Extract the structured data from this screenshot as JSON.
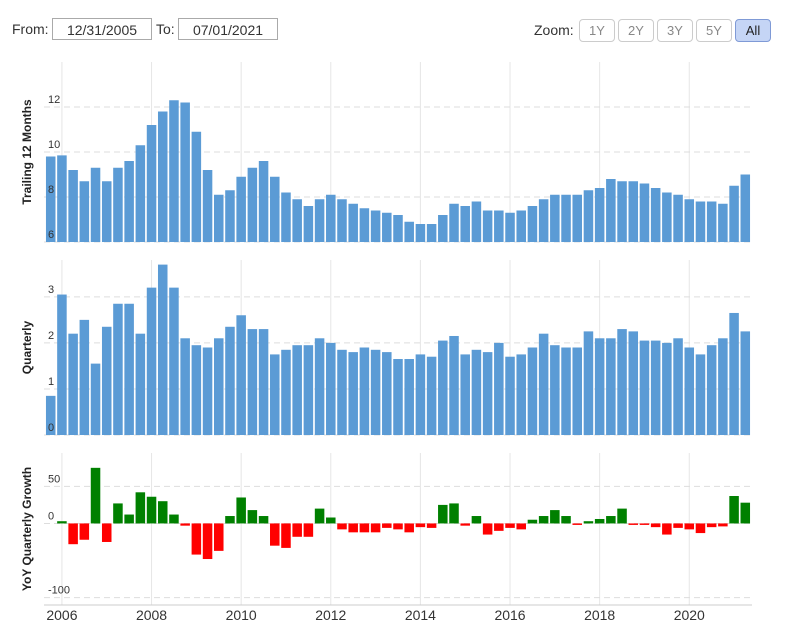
{
  "controls": {
    "from_label": "From:",
    "from_value": "12/31/2005",
    "to_label": "To:",
    "to_value": "07/01/2021",
    "zoom_label": "Zoom:",
    "zoom_buttons": [
      "1Y",
      "2Y",
      "3Y",
      "5Y",
      "All"
    ],
    "active": "All"
  },
  "x_axis": {
    "xlim": [
      2005.6,
      2021.4
    ],
    "xticks": [
      2006,
      2008,
      2010,
      2012,
      2014,
      2016,
      2018,
      2020
    ],
    "x": [
      2005.75,
      2006,
      2006.25,
      2006.5,
      2006.75,
      2007,
      2007.25,
      2007.5,
      2007.75,
      2008,
      2008.25,
      2008.5,
      2008.75,
      2009,
      2009.25,
      2009.5,
      2009.75,
      2010,
      2010.25,
      2010.5,
      2010.75,
      2011,
      2011.25,
      2011.5,
      2011.75,
      2012,
      2012.25,
      2012.5,
      2012.75,
      2013,
      2013.25,
      2013.5,
      2013.75,
      2014,
      2014.25,
      2014.5,
      2014.75,
      2015,
      2015.25,
      2015.5,
      2015.75,
      2016,
      2016.25,
      2016.5,
      2016.75,
      2017,
      2017.25,
      2017.5,
      2017.75,
      2018,
      2018.25,
      2018.5,
      2018.75,
      2019,
      2019.25,
      2019.5,
      2019.75,
      2020,
      2020.25,
      2020.5,
      2020.75,
      2021,
      2021.25
    ]
  },
  "chart_data": [
    {
      "type": "bar",
      "ylabel": "Trailing 12 Months",
      "color": "#5b9bd5",
      "ylim": [
        6,
        14
      ],
      "yticks": [
        6,
        8,
        10,
        12
      ],
      "grid": true,
      "values": [
        9.8,
        9.85,
        9.2,
        8.7,
        9.3,
        8.7,
        9.3,
        9.6,
        10.3,
        11.2,
        11.8,
        12.3,
        12.2,
        10.9,
        9.2,
        8.1,
        8.3,
        8.9,
        9.3,
        9.6,
        8.9,
        8.2,
        7.9,
        7.6,
        7.9,
        8.1,
        7.9,
        7.7,
        7.5,
        7.4,
        7.3,
        7.2,
        6.9,
        6.8,
        6.8,
        7.2,
        7.7,
        7.6,
        7.8,
        7.4,
        7.4,
        7.3,
        7.4,
        7.6,
        7.9,
        8.1,
        8.1,
        8.1,
        8.3,
        8.4,
        8.8,
        8.7,
        8.7,
        8.6,
        8.4,
        8.2,
        8.1,
        7.9,
        7.8,
        7.8,
        7.7,
        8.5,
        9.0
      ]
    },
    {
      "type": "bar",
      "ylabel": "Quarterly",
      "color": "#5b9bd5",
      "ylim": [
        0,
        3.8
      ],
      "yticks": [
        0,
        1,
        2,
        3
      ],
      "grid": true,
      "values": [
        0.85,
        3.05,
        2.2,
        2.5,
        1.55,
        2.35,
        2.85,
        2.85,
        2.2,
        3.2,
        3.7,
        3.2,
        2.1,
        1.95,
        1.9,
        2.1,
        2.35,
        2.6,
        2.3,
        2.3,
        1.75,
        1.85,
        1.95,
        1.95,
        2.1,
        2.0,
        1.85,
        1.8,
        1.9,
        1.85,
        1.8,
        1.65,
        1.65,
        1.75,
        1.7,
        2.05,
        2.15,
        1.75,
        1.85,
        1.8,
        2.0,
        1.7,
        1.75,
        1.9,
        2.2,
        1.95,
        1.9,
        1.9,
        2.25,
        2.1,
        2.1,
        2.3,
        2.25,
        2.05,
        2.05,
        2.0,
        2.1,
        1.9,
        1.75,
        1.95,
        2.1,
        2.65,
        2.25
      ]
    },
    {
      "type": "signed_bar",
      "ylabel": "YoY Quarterly Growth",
      "positive_color": "#008000",
      "negative_color": "#ff0000",
      "ylim": [
        -110,
        95
      ],
      "yticks": [
        -100,
        0,
        50
      ],
      "grid": true,
      "values": [
        null,
        3,
        -28,
        -22,
        75,
        -25,
        27,
        12,
        42,
        36,
        30,
        12,
        -3,
        -42,
        -48,
        -37,
        10,
        35,
        18,
        10,
        -30,
        -33,
        -18,
        -18,
        20,
        8,
        -8,
        -12,
        -12,
        -12,
        -6,
        -8,
        -12,
        -5,
        -6,
        25,
        27,
        -3,
        10,
        -15,
        -10,
        -6,
        -8,
        5,
        10,
        18,
        10,
        -2,
        3,
        6,
        10,
        20,
        -2,
        -2,
        -5,
        -15,
        -6,
        -8,
        -13,
        -5,
        -4,
        37,
        28
      ]
    }
  ]
}
